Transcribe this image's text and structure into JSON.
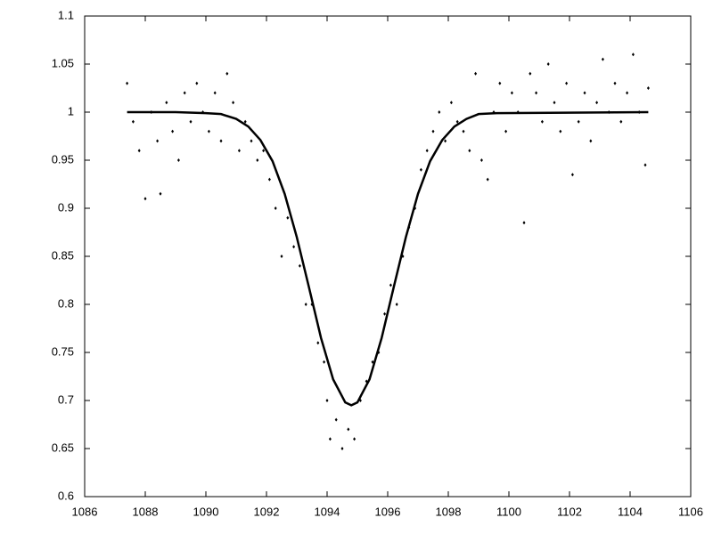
{
  "chart_data": {
    "type": "scatter",
    "xlim": [
      1086,
      1106
    ],
    "xticks": [
      1086,
      1088,
      1090,
      1092,
      1094,
      1096,
      1098,
      1100,
      1102,
      1104,
      1106
    ],
    "ylim": [
      0.6,
      1.1
    ],
    "yticks": [
      0.6,
      0.65,
      0.7,
      0.75,
      0.8,
      0.85,
      0.9,
      0.95,
      1,
      1.05,
      1.1
    ],
    "grid": false,
    "series": [
      {
        "style": "points",
        "color": "#000000",
        "x": [
          1087.4,
          1087.6,
          1087.8,
          1088.0,
          1088.2,
          1088.4,
          1088.5,
          1088.7,
          1088.9,
          1089.1,
          1089.3,
          1089.5,
          1089.7,
          1089.9,
          1090.1,
          1090.3,
          1090.5,
          1090.7,
          1090.9,
          1091.1,
          1091.3,
          1091.5,
          1091.7,
          1091.9,
          1092.1,
          1092.3,
          1092.5,
          1092.7,
          1092.9,
          1093.1,
          1093.3,
          1093.5,
          1093.7,
          1093.9,
          1094.0,
          1094.1,
          1094.3,
          1094.5,
          1094.7,
          1094.9,
          1095.1,
          1095.3,
          1095.5,
          1095.7,
          1095.9,
          1096.1,
          1096.3,
          1096.5,
          1096.7,
          1096.9,
          1097.1,
          1097.3,
          1097.5,
          1097.7,
          1097.9,
          1098.1,
          1098.3,
          1098.5,
          1098.7,
          1098.9,
          1099.1,
          1099.3,
          1099.5,
          1099.7,
          1099.9,
          1100.1,
          1100.3,
          1100.5,
          1100.7,
          1100.9,
          1101.1,
          1101.3,
          1101.5,
          1101.7,
          1101.9,
          1102.1,
          1102.3,
          1102.5,
          1102.7,
          1102.9,
          1103.1,
          1103.3,
          1103.5,
          1103.7,
          1103.9,
          1104.1,
          1104.3,
          1104.5,
          1104.6
        ],
        "values": [
          1.03,
          0.99,
          0.96,
          0.91,
          1.0,
          0.97,
          0.915,
          1.01,
          0.98,
          0.95,
          1.02,
          0.99,
          1.03,
          1.0,
          0.98,
          1.02,
          0.97,
          1.04,
          1.01,
          0.96,
          0.99,
          0.97,
          0.95,
          0.96,
          0.93,
          0.9,
          0.85,
          0.89,
          0.86,
          0.84,
          0.8,
          0.8,
          0.76,
          0.74,
          0.7,
          0.66,
          0.68,
          0.65,
          0.67,
          0.66,
          0.7,
          0.72,
          0.74,
          0.75,
          0.79,
          0.82,
          0.8,
          0.85,
          0.88,
          0.9,
          0.94,
          0.96,
          0.98,
          1.0,
          0.97,
          1.01,
          0.99,
          0.98,
          0.96,
          1.04,
          0.95,
          0.93,
          1.0,
          1.03,
          0.98,
          1.02,
          1.0,
          0.885,
          1.04,
          1.02,
          0.99,
          1.05,
          1.01,
          0.98,
          1.03,
          0.935,
          0.99,
          1.02,
          0.97,
          1.01,
          1.055,
          1.0,
          1.03,
          0.99,
          1.02,
          1.06,
          1.0,
          0.945,
          1.025
        ]
      },
      {
        "style": "line",
        "color": "#000000",
        "x": [
          1087.4,
          1089,
          1090,
          1090.5,
          1091,
          1091.4,
          1091.8,
          1092.2,
          1092.6,
          1093.0,
          1093.4,
          1093.8,
          1094.2,
          1094.6,
          1094.8,
          1095.0,
          1095.4,
          1095.8,
          1096.2,
          1096.6,
          1097.0,
          1097.4,
          1097.8,
          1098.2,
          1098.6,
          1099.0,
          1099.6,
          1104.6
        ],
        "values": [
          1.0,
          1.0,
          0.999,
          0.998,
          0.993,
          0.985,
          0.971,
          0.949,
          0.915,
          0.87,
          0.818,
          0.765,
          0.722,
          0.698,
          0.695,
          0.698,
          0.722,
          0.765,
          0.818,
          0.87,
          0.915,
          0.949,
          0.971,
          0.985,
          0.993,
          0.998,
          0.999,
          1.0
        ]
      }
    ]
  }
}
